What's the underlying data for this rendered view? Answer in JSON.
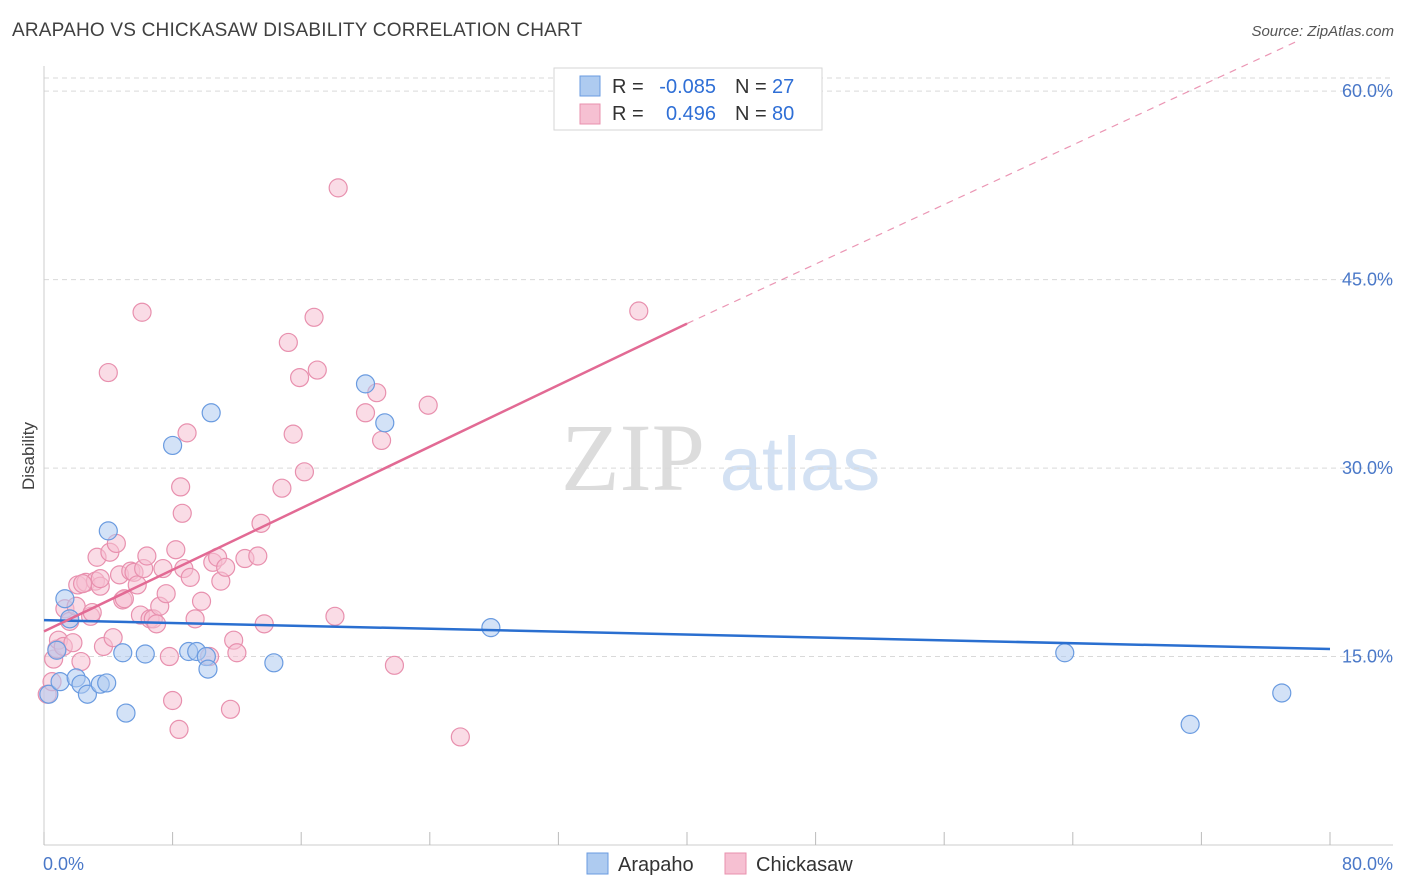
{
  "header": {
    "title": "ARAPAHO VS CHICKASAW DISABILITY CORRELATION CHART",
    "source": "Source: ZipAtlas.com"
  },
  "watermark": {
    "zip": "ZIP",
    "atlas": "atlas"
  },
  "legend_top": {
    "rows": [
      {
        "r_label": "R =",
        "r_value": "-0.085",
        "n_label": "N =",
        "n_value": "27"
      },
      {
        "r_label": "R =",
        "r_value": "0.496",
        "n_label": "N =",
        "n_value": "80"
      }
    ]
  },
  "legend_bottom": {
    "items": [
      "Arapaho",
      "Chickasaw"
    ]
  },
  "colors": {
    "arapaho_fill": "#aecbf0",
    "arapaho_stroke": "#6a9be0",
    "arapaho_line": "#2a6fd0",
    "chickasaw_fill": "#f6c0d2",
    "chickasaw_stroke": "#e890ae",
    "chickasaw_line": "#e26a94",
    "tick_text": "#4a78c8",
    "grid": "#d9d9d9"
  },
  "chart_data": {
    "type": "scatter",
    "title": "ARAPAHO VS CHICKASAW DISABILITY CORRELATION CHART",
    "xlabel": "",
    "ylabel": "Disability",
    "xlim": [
      0,
      80
    ],
    "ylim": [
      0,
      62
    ],
    "x_tick_labels": [
      "0.0%",
      "80.0%"
    ],
    "y_ticks": [
      15,
      30,
      45,
      60
    ],
    "y_tick_labels": [
      "15.0%",
      "30.0%",
      "45.0%",
      "60.0%"
    ],
    "series": [
      {
        "name": "Arapaho",
        "R": -0.085,
        "N": 27,
        "trend": {
          "x0": 0,
          "y0": 17.9,
          "x1": 80,
          "y1": 15.6
        },
        "points": [
          [
            0.3,
            12.0
          ],
          [
            0.8,
            15.5
          ],
          [
            1.0,
            13.0
          ],
          [
            1.3,
            19.6
          ],
          [
            1.6,
            18.0
          ],
          [
            2.0,
            13.3
          ],
          [
            2.3,
            12.8
          ],
          [
            2.7,
            12.0
          ],
          [
            3.5,
            12.8
          ],
          [
            3.9,
            12.9
          ],
          [
            4.0,
            25.0
          ],
          [
            4.9,
            15.3
          ],
          [
            5.1,
            10.5
          ],
          [
            6.3,
            15.2
          ],
          [
            8.0,
            31.8
          ],
          [
            9.0,
            15.4
          ],
          [
            9.5,
            15.4
          ],
          [
            10.1,
            15.0
          ],
          [
            10.2,
            14.0
          ],
          [
            10.4,
            34.4
          ],
          [
            14.3,
            14.5
          ],
          [
            20.0,
            36.7
          ],
          [
            21.2,
            33.6
          ],
          [
            27.8,
            17.3
          ],
          [
            63.5,
            15.3
          ],
          [
            71.3,
            9.6
          ],
          [
            77.0,
            12.1
          ]
        ]
      },
      {
        "name": "Chickasaw",
        "R": 0.496,
        "N": 80,
        "trend": {
          "x0": 0,
          "y0": 17.0,
          "x1": 40,
          "y1": 41.5
        },
        "trend_extension": {
          "x0": 40,
          "y0": 41.5,
          "x1": 78,
          "y1": 64
        },
        "points": [
          [
            0.2,
            12.0
          ],
          [
            0.5,
            13.0
          ],
          [
            0.6,
            14.8
          ],
          [
            0.8,
            15.6
          ],
          [
            0.9,
            16.3
          ],
          [
            1.2,
            15.8
          ],
          [
            1.3,
            18.8
          ],
          [
            1.6,
            17.8
          ],
          [
            1.8,
            16.1
          ],
          [
            2.0,
            19.0
          ],
          [
            2.1,
            20.7
          ],
          [
            2.3,
            14.6
          ],
          [
            2.6,
            20.9
          ],
          [
            2.9,
            18.2
          ],
          [
            3.0,
            18.5
          ],
          [
            3.2,
            21.0
          ],
          [
            3.3,
            22.9
          ],
          [
            3.5,
            20.6
          ],
          [
            3.7,
            15.8
          ],
          [
            4.1,
            23.3
          ],
          [
            4.3,
            16.5
          ],
          [
            4.5,
            24.0
          ],
          [
            4.7,
            21.5
          ],
          [
            4.9,
            19.5
          ],
          [
            5.0,
            19.6
          ],
          [
            5.4,
            21.8
          ],
          [
            5.6,
            21.7
          ],
          [
            5.8,
            20.7
          ],
          [
            6.0,
            18.3
          ],
          [
            6.2,
            22.0
          ],
          [
            6.4,
            23.0
          ],
          [
            6.6,
            18.0
          ],
          [
            6.8,
            18.0
          ],
          [
            7.0,
            17.6
          ],
          [
            7.2,
            19.0
          ],
          [
            7.4,
            22.0
          ],
          [
            7.6,
            20.0
          ],
          [
            7.8,
            15.0
          ],
          [
            8.0,
            11.5
          ],
          [
            8.2,
            23.5
          ],
          [
            8.4,
            9.2
          ],
          [
            8.6,
            26.4
          ],
          [
            8.7,
            22.0
          ],
          [
            8.9,
            32.8
          ],
          [
            9.1,
            21.3
          ],
          [
            9.4,
            18.0
          ],
          [
            9.8,
            19.4
          ],
          [
            10.3,
            15.0
          ],
          [
            10.5,
            22.5
          ],
          [
            10.8,
            22.9
          ],
          [
            11.0,
            21.0
          ],
          [
            11.3,
            22.1
          ],
          [
            11.6,
            10.8
          ],
          [
            11.8,
            16.3
          ],
          [
            12.0,
            15.3
          ],
          [
            12.5,
            22.8
          ],
          [
            13.3,
            23.0
          ],
          [
            13.5,
            25.6
          ],
          [
            13.7,
            17.6
          ],
          [
            14.8,
            28.4
          ],
          [
            15.2,
            40.0
          ],
          [
            15.5,
            32.7
          ],
          [
            15.9,
            37.2
          ],
          [
            16.2,
            29.7
          ],
          [
            16.8,
            42.0
          ],
          [
            17.0,
            37.8
          ],
          [
            18.1,
            18.2
          ],
          [
            18.3,
            52.3
          ],
          [
            20.0,
            34.4
          ],
          [
            20.7,
            36.0
          ],
          [
            21.0,
            32.2
          ],
          [
            21.8,
            14.3
          ],
          [
            23.9,
            35.0
          ],
          [
            25.9,
            8.6
          ],
          [
            37.0,
            42.5
          ],
          [
            6.1,
            42.4
          ],
          [
            4.0,
            37.6
          ],
          [
            3.5,
            21.2
          ],
          [
            2.4,
            20.8
          ],
          [
            8.5,
            28.5
          ]
        ]
      }
    ]
  }
}
